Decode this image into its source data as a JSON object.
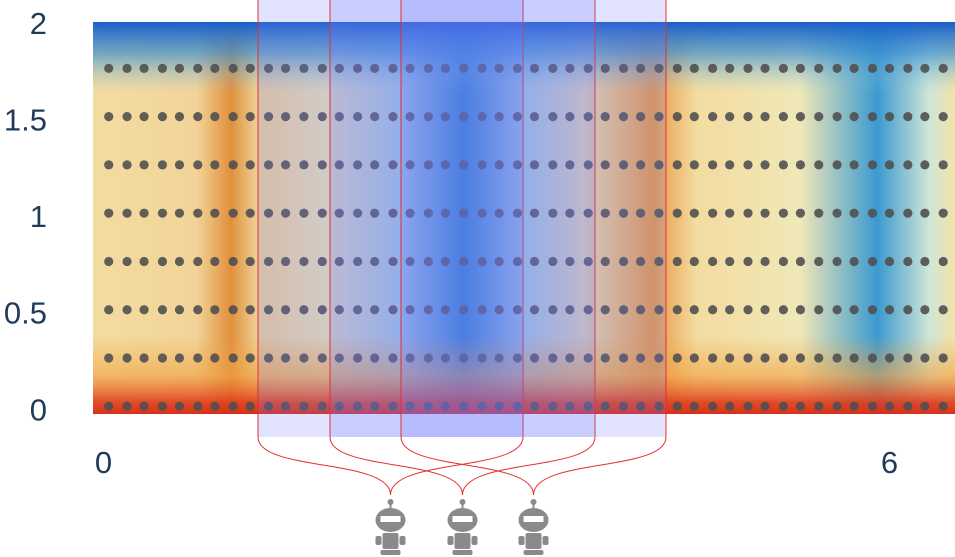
{
  "chart_data": {
    "type": "heatmap-scatter",
    "xlim": [
      -0.08,
      6.5
    ],
    "ylim": [
      -0.01,
      2.02
    ],
    "xticks": [
      0,
      6
    ],
    "yticks": [
      0,
      0.5,
      1,
      1.5,
      2
    ],
    "points": {
      "x": [
        0.04,
        0.18,
        0.31,
        0.45,
        0.58,
        0.72,
        0.85,
        0.99,
        1.12,
        1.26,
        1.39,
        1.53,
        1.67,
        1.8,
        1.94,
        2.07,
        2.21,
        2.34,
        2.48,
        2.61,
        2.75,
        2.89,
        3.02,
        3.16,
        3.29,
        3.43,
        3.56,
        3.7,
        3.83,
        3.97,
        4.1,
        4.24,
        4.38,
        4.51,
        4.65,
        4.78,
        4.92,
        5.05,
        5.19,
        5.32,
        5.46,
        5.6,
        5.73,
        5.87,
        6.0,
        6.14,
        6.27,
        6.41
      ],
      "y": [
        0.03,
        0.28,
        0.53,
        0.78,
        1.03,
        1.28,
        1.53,
        1.78
      ]
    },
    "dot_color": "#505050"
  }
}
